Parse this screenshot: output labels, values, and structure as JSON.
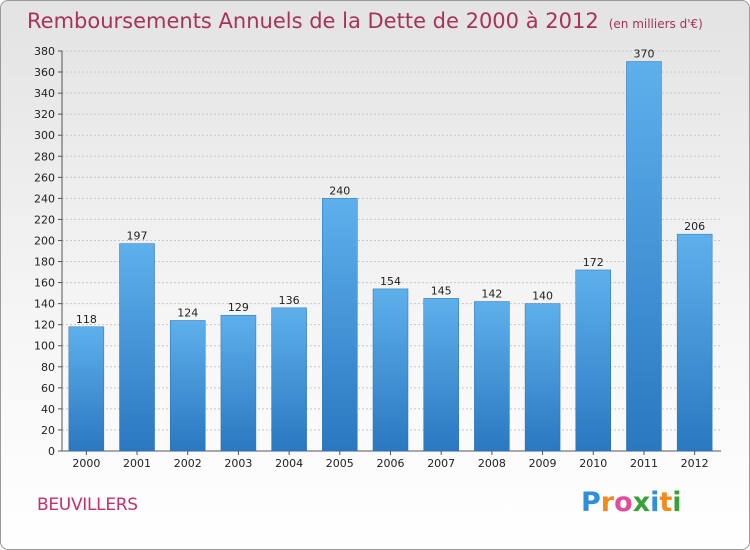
{
  "title": "Remboursements Annuels de la Dette de 2000 à 2012",
  "unit_note": "(en milliers d'€)",
  "commune": "BEUVILLERS",
  "logo": {
    "letters": [
      "P",
      "r",
      "o",
      "x",
      "i",
      "t",
      "i"
    ],
    "colors": [
      "#2f8fd8",
      "#f28a1e",
      "#e24c9a",
      "#3aa13a",
      "#2f8fd8",
      "#f28a1e",
      "#3aa13a"
    ]
  },
  "chart_data": {
    "type": "bar",
    "categories": [
      "2000",
      "2001",
      "2002",
      "2003",
      "2004",
      "2005",
      "2006",
      "2007",
      "2008",
      "2009",
      "2010",
      "2011",
      "2012"
    ],
    "values": [
      118,
      197,
      124,
      129,
      136,
      240,
      154,
      145,
      142,
      140,
      172,
      370,
      206
    ],
    "value_labels": [
      "118",
      "197",
      "124",
      "129",
      "136",
      "240",
      "154",
      "145",
      "142",
      "140",
      "172",
      "370",
      "206"
    ],
    "y_ticks": [
      0,
      20,
      40,
      60,
      80,
      100,
      120,
      140,
      160,
      180,
      200,
      220,
      240,
      260,
      280,
      300,
      320,
      340,
      360,
      380
    ],
    "ylim": [
      0,
      380
    ],
    "grid": true,
    "bar_color": "#3d8fd6"
  }
}
